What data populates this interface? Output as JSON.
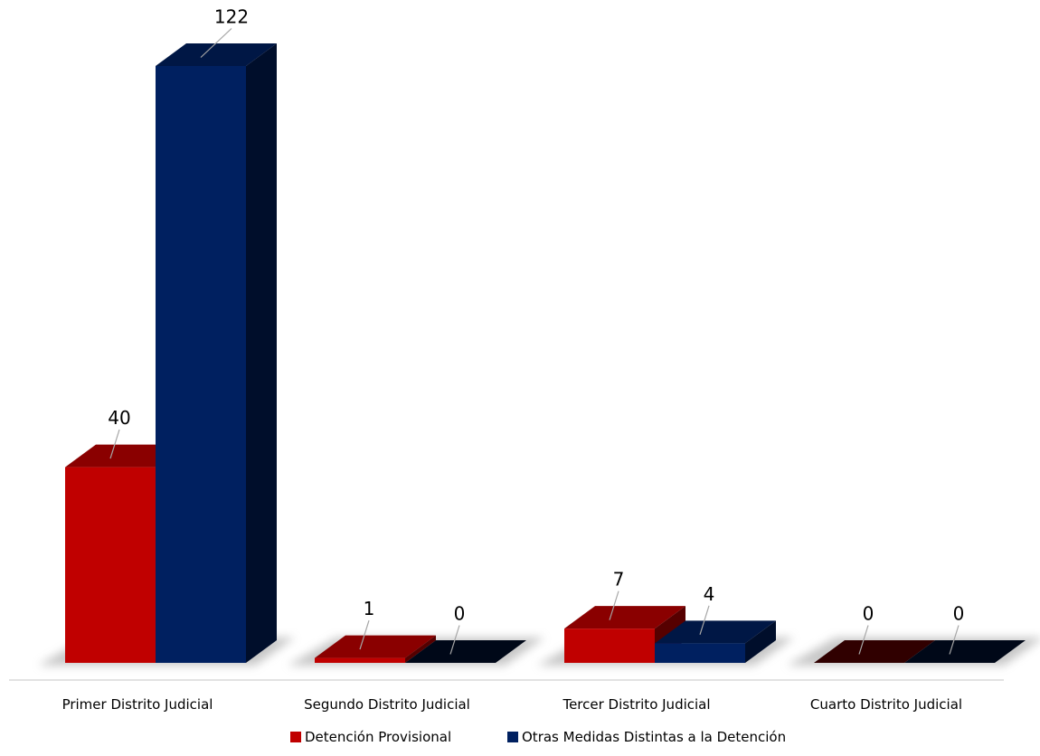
{
  "chart_data": {
    "type": "bar",
    "categories": [
      "Primer Distrito Judicial",
      "Segundo Distrito Judicial",
      "Tercer Distrito Judicial",
      "Cuarto Distrito Judicial"
    ],
    "series": [
      {
        "name": "Detención Provisional",
        "values": [
          40,
          1,
          7,
          0
        ],
        "color": "#C00000"
      },
      {
        "name": "Otras Medidas Distintas a la Detención",
        "values": [
          122,
          0,
          4,
          0
        ],
        "color": "#002060"
      }
    ],
    "title": "",
    "xlabel": "",
    "ylabel": "",
    "ylim": [
      0,
      122
    ],
    "grid": false,
    "legend": "bottom",
    "style": "3d-column"
  }
}
